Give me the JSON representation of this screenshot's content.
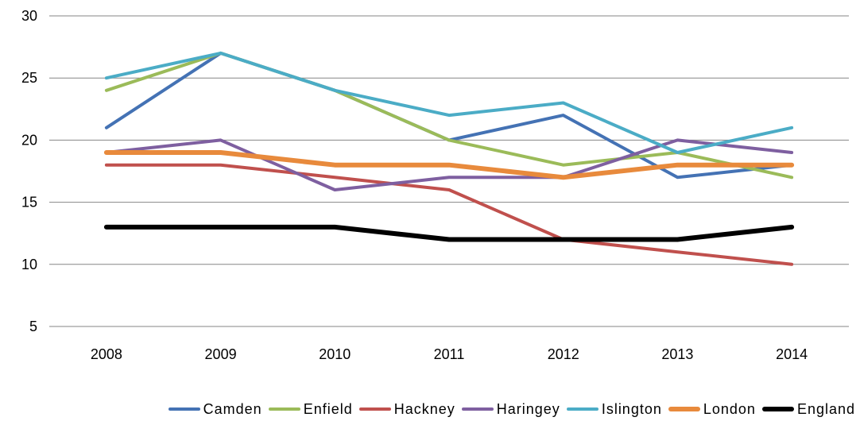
{
  "chart_data": {
    "type": "line",
    "title": "",
    "xlabel": "",
    "ylabel": "",
    "categories": [
      "2008",
      "2009",
      "2010",
      "2011",
      "2012",
      "2013",
      "2014"
    ],
    "ylim": [
      5,
      30
    ],
    "yticks": [
      5,
      10,
      15,
      20,
      25,
      30
    ],
    "grid": "horizontal",
    "legend_position": "bottom",
    "series": [
      {
        "name": "Camden",
        "color": "#4472B4",
        "values": [
          21,
          27,
          24,
          20,
          22,
          17,
          18
        ]
      },
      {
        "name": "Enfield",
        "color": "#9BBB59",
        "values": [
          24,
          27,
          24,
          20,
          18,
          19,
          17
        ]
      },
      {
        "name": "Hackney",
        "color": "#C0504D",
        "values": [
          18,
          18,
          17,
          16,
          12,
          11,
          10
        ]
      },
      {
        "name": "Haringey",
        "color": "#7E5FA0",
        "values": [
          19,
          20,
          16,
          17,
          17,
          20,
          19
        ]
      },
      {
        "name": "Islington",
        "color": "#4BACC6",
        "values": [
          25,
          27,
          24,
          22,
          23,
          19,
          21
        ]
      },
      {
        "name": "London",
        "color": "#E88A3C",
        "values": [
          19,
          19,
          18,
          18,
          17,
          18,
          18
        ]
      },
      {
        "name": "England",
        "color": "#000000",
        "values": [
          13,
          13,
          13,
          12,
          12,
          12,
          13
        ]
      }
    ]
  }
}
